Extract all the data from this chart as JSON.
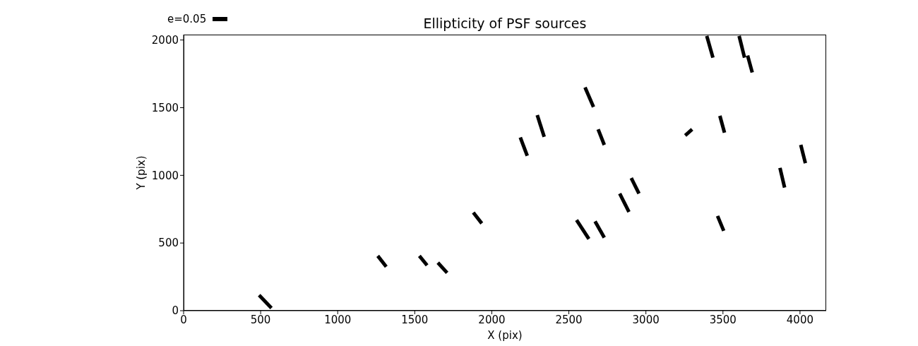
{
  "chart_data": {
    "type": "line",
    "title": "Ellipticity of PSF sources",
    "xlabel": "X (pix)",
    "ylabel": "Y (pix)",
    "annotations": [
      "e=0.05"
    ],
    "xlim": [
      0,
      4170
    ],
    "xticks": [
      0,
      500,
      1000,
      1500,
      2000,
      2500,
      3000,
      3500,
      4000
    ],
    "ylim": [
      0,
      2040
    ],
    "yticks": [
      0,
      500,
      1000,
      1500,
      2000
    ],
    "grid": false,
    "marker": "none",
    "line_style": "solid",
    "series": [
      {
        "color": "#000000",
        "x": [
          490,
          570
        ],
        "values": [
          115,
          20
        ]
      },
      {
        "color": "#000000",
        "x": [
          1260,
          1315
        ],
        "values": [
          405,
          325
        ]
      },
      {
        "color": "#000000",
        "x": [
          1530,
          1580
        ],
        "values": [
          405,
          335
        ]
      },
      {
        "color": "#000000",
        "x": [
          1650,
          1710
        ],
        "values": [
          355,
          280
        ]
      },
      {
        "color": "#000000",
        "x": [
          1880,
          1935
        ],
        "values": [
          725,
          645
        ]
      },
      {
        "color": "#000000",
        "x": [
          2550,
          2630
        ],
        "values": [
          670,
          530
        ]
      },
      {
        "color": "#000000",
        "x": [
          2670,
          2730
        ],
        "values": [
          660,
          540
        ]
      },
      {
        "color": "#000000",
        "x": [
          2830,
          2890
        ],
        "values": [
          865,
          730
        ]
      },
      {
        "color": "#000000",
        "x": [
          2905,
          2955
        ],
        "values": [
          980,
          865
        ]
      },
      {
        "color": "#000000",
        "x": [
          3465,
          3505
        ],
        "values": [
          700,
          590
        ]
      },
      {
        "color": "#000000",
        "x": [
          3870,
          3900
        ],
        "values": [
          1055,
          910
        ]
      },
      {
        "color": "#000000",
        "x": [
          4005,
          4035
        ],
        "values": [
          1225,
          1090
        ]
      },
      {
        "color": "#000000",
        "x": [
          3255,
          3300
        ],
        "values": [
          1295,
          1340
        ]
      },
      {
        "color": "#000000",
        "x": [
          3480,
          3510
        ],
        "values": [
          1440,
          1315
        ]
      },
      {
        "color": "#000000",
        "x": [
          3395,
          3435
        ],
        "values": [
          2030,
          1870
        ]
      },
      {
        "color": "#000000",
        "x": [
          3605,
          3640
        ],
        "values": [
          2030,
          1870
        ]
      },
      {
        "color": "#000000",
        "x": [
          3660,
          3690
        ],
        "values": [
          1885,
          1760
        ]
      },
      {
        "color": "#000000",
        "x": [
          2605,
          2660
        ],
        "values": [
          1650,
          1505
        ]
      },
      {
        "color": "#000000",
        "x": [
          2690,
          2730
        ],
        "values": [
          1340,
          1225
        ]
      },
      {
        "color": "#000000",
        "x": [
          2295,
          2340
        ],
        "values": [
          1445,
          1285
        ]
      },
      {
        "color": "#000000",
        "x": [
          2185,
          2230
        ],
        "values": [
          1280,
          1145
        ]
      }
    ]
  }
}
